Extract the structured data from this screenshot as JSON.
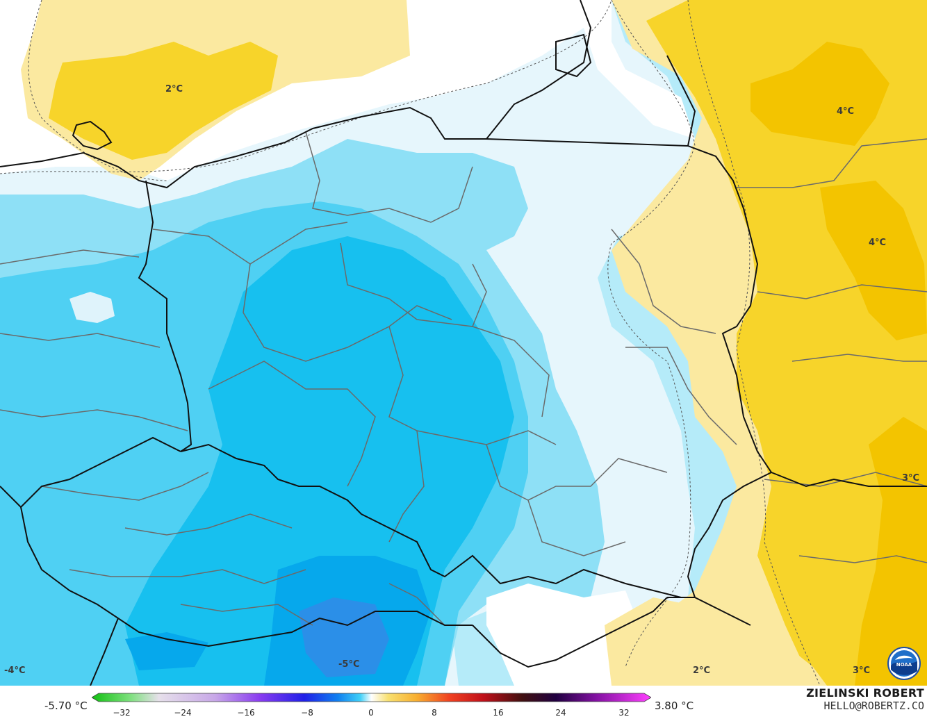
{
  "map": {
    "contour_labels": [
      {
        "text": "2°C",
        "name": "label-2c-baltic"
      },
      {
        "text": "4°C",
        "name": "label-4c-northeast"
      },
      {
        "text": "4°C",
        "name": "label-4c-east"
      },
      {
        "text": "3°C",
        "name": "label-3c-southeast"
      },
      {
        "text": "-4°C",
        "name": "label-minus4c-southwest"
      },
      {
        "text": "-5°C",
        "name": "label-minus5c-south"
      },
      {
        "text": "2°C",
        "name": "label-2c-south"
      },
      {
        "text": "3°C",
        "name": "label-3c-south"
      }
    ],
    "colors": {
      "yellow_light": "#fbe9a0",
      "yellow": "#f7d42a",
      "yellow_dark": "#f3c400",
      "white": "#ffffff",
      "blue_pale": "#dff3fb",
      "blue_light": "#b5ebf9",
      "blue_mid": "#8ee0f6",
      "blue": "#4fd0f3",
      "blue_strong": "#17c0ef",
      "blue_deep": "#06a8ec",
      "blue_darkest": "#2b8fe8",
      "border": "#111111",
      "admin": "#6a6a6a"
    }
  },
  "legend": {
    "min_value": "-5.70 °C",
    "max_value": "3.80 °C",
    "ticks": [
      "−32",
      "−24",
      "−16",
      "−8",
      "0",
      "8",
      "16",
      "24",
      "32"
    ]
  },
  "credit": {
    "name": "ZIELINSKI ROBERT",
    "email": "HELLO@ROBERTZ.CO",
    "logo": "noaa-logo"
  }
}
